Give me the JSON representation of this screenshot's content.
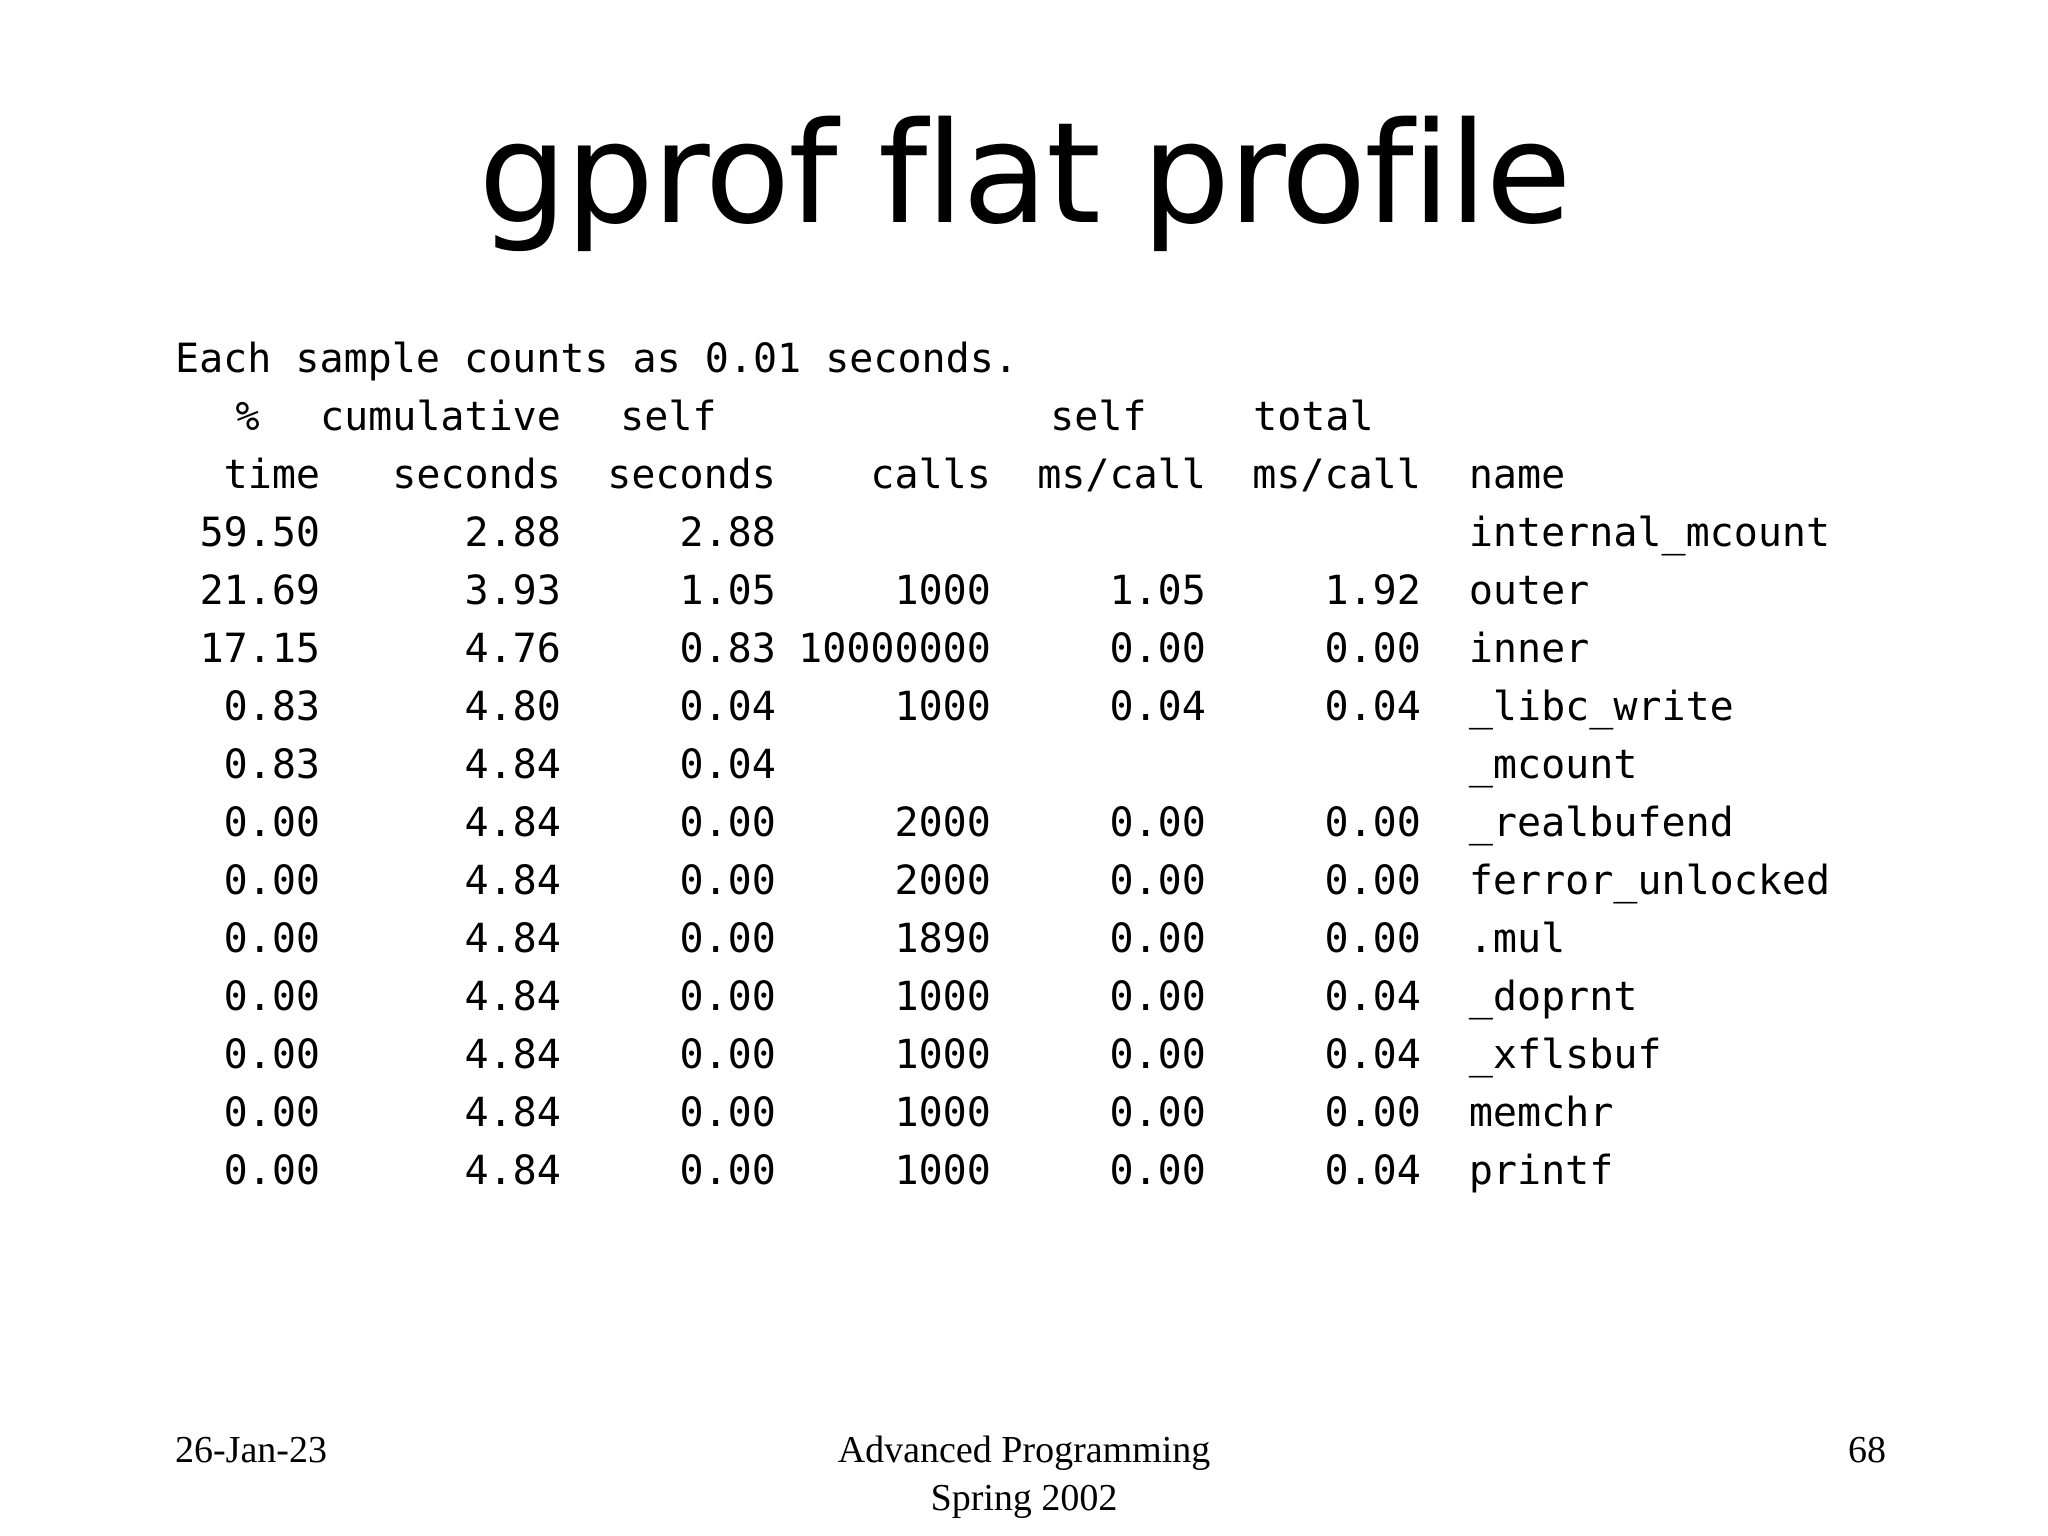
{
  "slide": {
    "title": "gprof flat profile"
  },
  "profile": {
    "note": "Each sample counts as 0.01 seconds.",
    "header_row1": [
      "%",
      "cumulative",
      "self",
      "",
      "self",
      "total",
      ""
    ],
    "header_row2": [
      "time",
      "seconds",
      "seconds",
      "calls",
      "ms/call",
      "ms/call",
      "name"
    ],
    "rows": [
      [
        "59.50",
        "2.88",
        "2.88",
        "",
        "",
        "",
        "internal_mcount"
      ],
      [
        "21.69",
        "3.93",
        "1.05",
        "1000",
        "1.05",
        "1.92",
        "outer"
      ],
      [
        "17.15",
        "4.76",
        "0.83",
        "10000000",
        "0.00",
        "0.00",
        "inner"
      ],
      [
        "0.83",
        "4.80",
        "0.04",
        "1000",
        "0.04",
        "0.04",
        "_libc_write"
      ],
      [
        "0.83",
        "4.84",
        "0.04",
        "",
        "",
        "",
        "_mcount"
      ],
      [
        "0.00",
        "4.84",
        "0.00",
        "2000",
        "0.00",
        "0.00",
        "_realbufend"
      ],
      [
        "0.00",
        "4.84",
        "0.00",
        "2000",
        "0.00",
        "0.00",
        "ferror_unlocked"
      ],
      [
        "0.00",
        "4.84",
        "0.00",
        "1890",
        "0.00",
        "0.00",
        ".mul"
      ],
      [
        "0.00",
        "4.84",
        "0.00",
        "1000",
        "0.00",
        "0.04",
        "_doprnt"
      ],
      [
        "0.00",
        "4.84",
        "0.00",
        "1000",
        "0.00",
        "0.04",
        "_xflsbuf"
      ],
      [
        "0.00",
        "4.84",
        "0.00",
        "1000",
        "0.00",
        "0.00",
        "memchr"
      ],
      [
        "0.00",
        "4.84",
        "0.00",
        "1000",
        "0.00",
        "0.04",
        "printf"
      ]
    ]
  },
  "footer": {
    "date": "26-Jan-23",
    "course_line1": "Advanced Programming",
    "course_line2": "Spring 2002",
    "page_number": "68"
  }
}
